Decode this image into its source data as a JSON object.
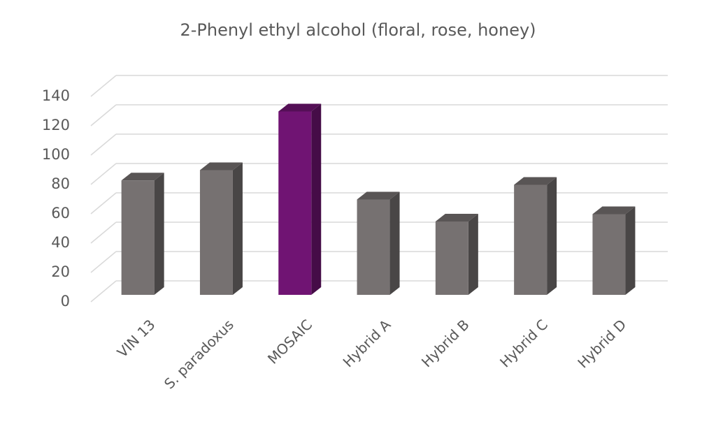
{
  "chart_data": {
    "type": "bar3d",
    "title": "2-Phenyl ethyl alcohol (floral, rose, honey)",
    "categories": [
      "VIN 13",
      "S. paradoxus",
      "MOSAIC",
      "Hybrid A",
      "Hybrid B",
      "Hybrid C",
      "Hybrid D"
    ],
    "values": [
      78,
      85,
      125,
      65,
      50,
      75,
      55
    ],
    "colors": [
      "#767171",
      "#767171",
      "#701473",
      "#767171",
      "#767171",
      "#767171",
      "#767171"
    ],
    "ylim": [
      0,
      140
    ],
    "yticks": [
      0,
      20,
      40,
      60,
      80,
      100,
      120,
      140
    ],
    "grid": true
  }
}
